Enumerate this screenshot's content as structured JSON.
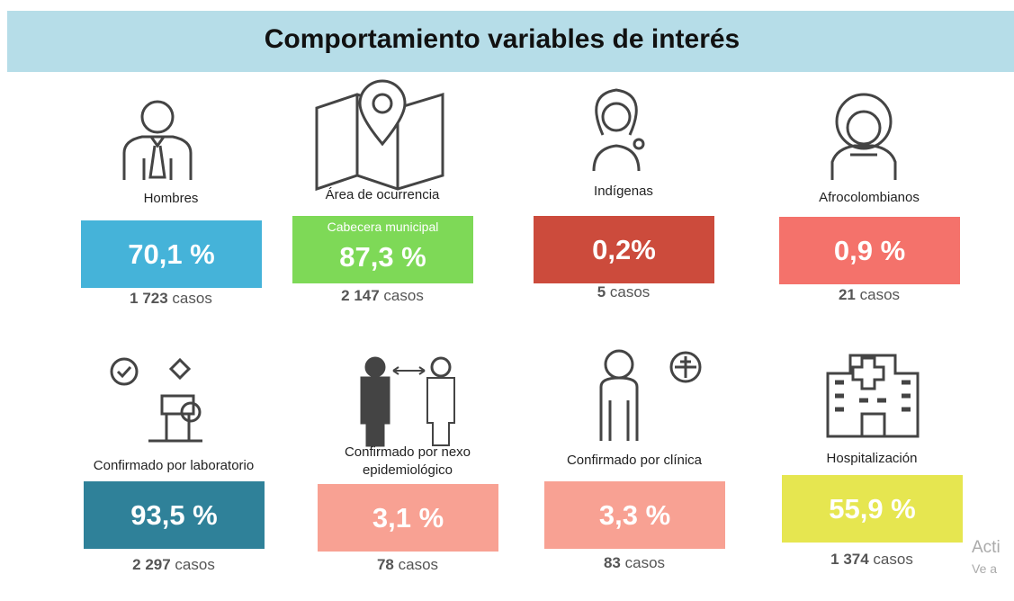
{
  "header": {
    "title": "Comportamiento variables de interés"
  },
  "items": [
    {
      "label": "Hombres",
      "value": "70,1 %",
      "count": "1 723",
      "unit": "casos",
      "color": "#45b3d9"
    },
    {
      "label": "Área de ocurrencia",
      "sublabel": "Cabecera municipal",
      "value": "87,3 %",
      "count": "2 147",
      "unit": "casos",
      "color": "#7ed957"
    },
    {
      "label": "Indígenas",
      "value": "0,2%",
      "count": "5",
      "unit": "casos",
      "color": "#cc4b3c"
    },
    {
      "label": "Afrocolombianos",
      "value": "0,9 %",
      "count": "21",
      "unit": "casos",
      "color": "#f4726b"
    },
    {
      "label": "Confirmado por laboratorio",
      "value": "93,5 %",
      "count": "2 297",
      "unit": "casos",
      "color": "#2f8199"
    },
    {
      "label": "Confirmado por nexo epidemiológico",
      "value": "3,1 %",
      "count": "78",
      "unit": "casos",
      "color": "#f8a193"
    },
    {
      "label": "Confirmado por clínica",
      "value": "3,3 %",
      "count": "83",
      "unit": "casos",
      "color": "#f8a193"
    },
    {
      "label": "Hospitalización",
      "value": "55,9 %",
      "count": "1 374",
      "unit": "casos",
      "color": "#e6e650"
    }
  ],
  "watermark": {
    "line1": "Acti",
    "line2": "Ve a"
  }
}
